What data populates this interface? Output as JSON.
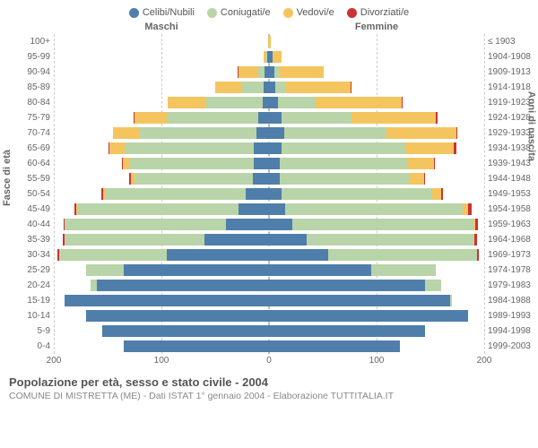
{
  "legend": [
    {
      "label": "Celibi/Nubili",
      "color": "#4f7eaa"
    },
    {
      "label": "Coniugati/e",
      "color": "#b9d4a8"
    },
    {
      "label": "Vedovi/e",
      "color": "#f4c55e"
    },
    {
      "label": "Divorziati/e",
      "color": "#cb3234"
    }
  ],
  "top_labels": {
    "male": "Maschi",
    "female": "Femmine"
  },
  "y_left_title": "Fasce di età",
  "y_right_title": "Anni di nascita",
  "x_axis": {
    "max": 200,
    "ticks": [
      200,
      100,
      0,
      100,
      200
    ]
  },
  "colors": {
    "celibi": "#4f7eaa",
    "coniugati": "#b9d4a8",
    "vedovi": "#f4c55e",
    "divorziati": "#cb3234",
    "grid": "#cccccc",
    "center": "#bbbbbb",
    "bg": "#ffffff"
  },
  "rows": [
    {
      "age": "100+",
      "birth": "≤ 1903",
      "m": {
        "c": 0,
        "co": 0,
        "v": 1,
        "d": 0
      },
      "f": {
        "c": 0,
        "co": 0,
        "v": 2,
        "d": 0
      }
    },
    {
      "age": "95-99",
      "birth": "1904-1908",
      "m": {
        "c": 2,
        "co": 1,
        "v": 2,
        "d": 0
      },
      "f": {
        "c": 3,
        "co": 0,
        "v": 9,
        "d": 0
      }
    },
    {
      "age": "90-94",
      "birth": "1909-1913",
      "m": {
        "c": 4,
        "co": 6,
        "v": 18,
        "d": 1
      },
      "f": {
        "c": 5,
        "co": 4,
        "v": 42,
        "d": 0
      }
    },
    {
      "age": "85-89",
      "birth": "1914-1918",
      "m": {
        "c": 5,
        "co": 20,
        "v": 25,
        "d": 0
      },
      "f": {
        "c": 6,
        "co": 10,
        "v": 60,
        "d": 1
      }
    },
    {
      "age": "80-84",
      "birth": "1919-1923",
      "m": {
        "c": 6,
        "co": 52,
        "v": 36,
        "d": 0
      },
      "f": {
        "c": 8,
        "co": 35,
        "v": 80,
        "d": 1
      }
    },
    {
      "age": "75-79",
      "birth": "1924-1928",
      "m": {
        "c": 10,
        "co": 85,
        "v": 30,
        "d": 1
      },
      "f": {
        "c": 12,
        "co": 65,
        "v": 78,
        "d": 2
      }
    },
    {
      "age": "70-74",
      "birth": "1929-1933",
      "m": {
        "c": 12,
        "co": 108,
        "v": 25,
        "d": 0
      },
      "f": {
        "c": 14,
        "co": 95,
        "v": 65,
        "d": 1
      }
    },
    {
      "age": "65-69",
      "birth": "1934-1938",
      "m": {
        "c": 14,
        "co": 120,
        "v": 14,
        "d": 1
      },
      "f": {
        "c": 12,
        "co": 115,
        "v": 45,
        "d": 2
      }
    },
    {
      "age": "60-64",
      "birth": "1939-1943",
      "m": {
        "c": 14,
        "co": 115,
        "v": 7,
        "d": 1
      },
      "f": {
        "c": 10,
        "co": 118,
        "v": 25,
        "d": 1
      }
    },
    {
      "age": "55-59",
      "birth": "1944-1948",
      "m": {
        "c": 15,
        "co": 110,
        "v": 3,
        "d": 2
      },
      "f": {
        "c": 10,
        "co": 120,
        "v": 14,
        "d": 1
      }
    },
    {
      "age": "50-54",
      "birth": "1949-1953",
      "m": {
        "c": 22,
        "co": 130,
        "v": 2,
        "d": 2
      },
      "f": {
        "c": 12,
        "co": 140,
        "v": 8,
        "d": 2
      }
    },
    {
      "age": "45-49",
      "birth": "1954-1958",
      "m": {
        "c": 28,
        "co": 150,
        "v": 1,
        "d": 2
      },
      "f": {
        "c": 15,
        "co": 165,
        "v": 5,
        "d": 3
      }
    },
    {
      "age": "40-44",
      "birth": "1959-1963",
      "m": {
        "c": 40,
        "co": 150,
        "v": 0,
        "d": 1
      },
      "f": {
        "c": 22,
        "co": 168,
        "v": 2,
        "d": 2
      }
    },
    {
      "age": "35-39",
      "birth": "1964-1968",
      "m": {
        "c": 60,
        "co": 130,
        "v": 0,
        "d": 2
      },
      "f": {
        "c": 35,
        "co": 155,
        "v": 1,
        "d": 2
      }
    },
    {
      "age": "30-34",
      "birth": "1969-1973",
      "m": {
        "c": 95,
        "co": 100,
        "v": 0,
        "d": 2
      },
      "f": {
        "c": 55,
        "co": 138,
        "v": 0,
        "d": 2
      }
    },
    {
      "age": "25-29",
      "birth": "1974-1978",
      "m": {
        "c": 135,
        "co": 35,
        "v": 0,
        "d": 0
      },
      "f": {
        "c": 95,
        "co": 60,
        "v": 0,
        "d": 0
      }
    },
    {
      "age": "20-24",
      "birth": "1979-1983",
      "m": {
        "c": 160,
        "co": 6,
        "v": 0,
        "d": 0
      },
      "f": {
        "c": 145,
        "co": 15,
        "v": 0,
        "d": 0
      }
    },
    {
      "age": "15-19",
      "birth": "1984-1988",
      "m": {
        "c": 190,
        "co": 0,
        "v": 0,
        "d": 0
      },
      "f": {
        "c": 168,
        "co": 2,
        "v": 0,
        "d": 0
      }
    },
    {
      "age": "10-14",
      "birth": "1989-1993",
      "m": {
        "c": 170,
        "co": 0,
        "v": 0,
        "d": 0
      },
      "f": {
        "c": 185,
        "co": 0,
        "v": 0,
        "d": 0
      }
    },
    {
      "age": "5-9",
      "birth": "1994-1998",
      "m": {
        "c": 155,
        "co": 0,
        "v": 0,
        "d": 0
      },
      "f": {
        "c": 145,
        "co": 0,
        "v": 0,
        "d": 0
      }
    },
    {
      "age": "0-4",
      "birth": "1999-2003",
      "m": {
        "c": 135,
        "co": 0,
        "v": 0,
        "d": 0
      },
      "f": {
        "c": 122,
        "co": 0,
        "v": 0,
        "d": 0
      }
    }
  ],
  "footer": {
    "title": "Popolazione per età, sesso e stato civile - 2004",
    "subtitle": "COMUNE DI MISTRETTA (ME) - Dati ISTAT 1° gennaio 2004 - Elaborazione TUTTITALIA.IT"
  }
}
